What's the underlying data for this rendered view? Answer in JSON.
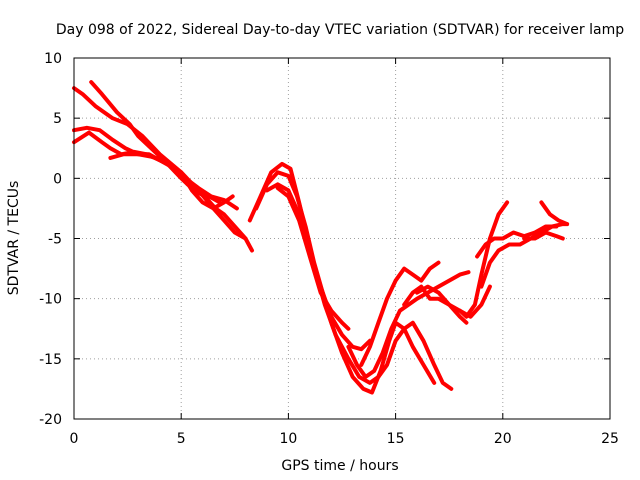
{
  "chart_data": {
    "type": "line",
    "title": "Day 098 of 2022, Sidereal Day-to-day VTEC variation (SDTVAR) for receiver lamp",
    "xlabel": "GPS time / hours",
    "ylabel": "SDTVAR / TECUs",
    "xlim": [
      0,
      25
    ],
    "ylim": [
      -20,
      10
    ],
    "xticks": [
      0,
      5,
      10,
      15,
      20,
      25
    ],
    "yticks": [
      -20,
      -15,
      -10,
      -5,
      0,
      5,
      10
    ],
    "xtick_labels": [
      "0",
      "5",
      "10",
      "15",
      "20",
      "25"
    ],
    "ytick_labels": [
      "-20",
      "-15",
      "-10",
      "-5",
      "0",
      "5",
      "10"
    ],
    "grid": true,
    "color": "#ff0000",
    "series": [
      {
        "name": "s1",
        "x": [
          0.0,
          0.4,
          1.0,
          1.8,
          2.5,
          3.2,
          4.0,
          5.0,
          5.8,
          6.5,
          7.0,
          7.5,
          8.0,
          8.3
        ],
        "y": [
          7.5,
          7.0,
          6.0,
          5.0,
          4.5,
          3.5,
          2.0,
          0.5,
          -1.0,
          -2.5,
          -3.5,
          -4.5,
          -5.0,
          -6.0
        ]
      },
      {
        "name": "s2",
        "x": [
          0.8,
          1.3,
          2.0,
          2.6,
          3.0,
          3.6,
          4.2,
          5.0,
          5.6,
          6.1,
          6.6,
          7.0,
          7.5,
          8.0
        ],
        "y": [
          8.0,
          7.0,
          5.5,
          4.5,
          3.5,
          2.5,
          1.5,
          0.0,
          -1.0,
          -1.5,
          -2.5,
          -3.0,
          -4.0,
          -5.0
        ]
      },
      {
        "name": "s3",
        "x": [
          0.0,
          0.6,
          1.2,
          1.8,
          2.4,
          3.0,
          3.6,
          4.2,
          4.8,
          5.3,
          5.8,
          6.3,
          6.8
        ],
        "y": [
          4.0,
          4.2,
          4.0,
          3.2,
          2.5,
          2.0,
          1.8,
          1.5,
          0.5,
          -0.5,
          -1.2,
          -1.5,
          -2.0
        ]
      },
      {
        "name": "s4",
        "x": [
          0.0,
          0.7,
          1.3,
          1.7,
          2.2,
          2.8,
          3.4,
          4.0,
          4.6,
          5.2,
          5.8,
          6.4,
          7.0,
          7.6
        ],
        "y": [
          3.0,
          3.8,
          3.0,
          2.5,
          2.0,
          2.2,
          2.0,
          1.5,
          1.0,
          0.0,
          -0.8,
          -1.5,
          -1.8,
          -2.5
        ]
      },
      {
        "name": "s5",
        "x": [
          1.7,
          2.3,
          2.9,
          3.5,
          4.0,
          4.5,
          5.0,
          5.5,
          6.0,
          6.5,
          7.0,
          7.4
        ],
        "y": [
          1.7,
          2.0,
          2.0,
          2.0,
          1.5,
          1.0,
          0.5,
          -1.0,
          -2.0,
          -2.5,
          -2.0,
          -1.5
        ]
      },
      {
        "name": "s6",
        "x": [
          8.2,
          8.7,
          9.2,
          9.7,
          10.1,
          10.5,
          10.9,
          11.3,
          11.7,
          12.2,
          12.8,
          13.3,
          13.8,
          14.2,
          14.6,
          15.0,
          15.4,
          15.8,
          16.3,
          16.8,
          17.2,
          17.6
        ],
        "y": [
          -3.5,
          -1.5,
          0.5,
          1.2,
          0.8,
          -2.0,
          -5.0,
          -8.0,
          -10.5,
          -13.0,
          -15.0,
          -16.5,
          -17.0,
          -16.5,
          -15.5,
          -13.5,
          -12.5,
          -12.0,
          -13.5,
          -15.5,
          -17.0,
          -17.5
        ]
      },
      {
        "name": "s7",
        "x": [
          8.5,
          9.0,
          9.5,
          10.0,
          10.4,
          10.8,
          11.2,
          11.6,
          12.0,
          12.5,
          13.0,
          13.5,
          13.9,
          14.3,
          14.7,
          15.0,
          15.4,
          15.8,
          16.3,
          16.8
        ],
        "y": [
          -2.5,
          -0.5,
          0.5,
          0.2,
          -1.5,
          -4.0,
          -7.0,
          -9.5,
          -12.0,
          -14.5,
          -16.5,
          -17.5,
          -17.8,
          -16.0,
          -13.5,
          -12.0,
          -12.5,
          -14.0,
          -15.5,
          -17.0
        ]
      },
      {
        "name": "s8",
        "x": [
          9.0,
          9.5,
          10.0,
          10.5,
          11.0,
          11.5,
          12.0,
          12.5,
          13.0,
          13.4,
          13.8
        ],
        "y": [
          -1.0,
          -0.5,
          -1.0,
          -3.0,
          -6.0,
          -9.0,
          -11.5,
          -13.0,
          -14.0,
          -14.2,
          -13.5
        ]
      },
      {
        "name": "s9",
        "x": [
          9.5,
          10.0,
          10.5,
          11.0,
          11.5,
          12.0,
          12.5,
          12.8
        ],
        "y": [
          -0.8,
          -1.5,
          -3.5,
          -6.5,
          -9.5,
          -11.0,
          -12.0,
          -12.5
        ]
      },
      {
        "name": "s10",
        "x": [
          12.8,
          13.2,
          13.6,
          14.0,
          14.4,
          14.8,
          15.2,
          15.6,
          16.0,
          16.5,
          17.0,
          17.5,
          18.0,
          18.4
        ],
        "y": [
          -14.0,
          -15.5,
          -16.5,
          -16.0,
          -14.5,
          -12.5,
          -11.0,
          -10.5,
          -10.0,
          -9.5,
          -9.0,
          -8.5,
          -8.0,
          -7.8
        ]
      },
      {
        "name": "s11",
        "x": [
          13.4,
          13.8,
          14.2,
          14.6,
          15.0,
          15.4,
          15.8,
          16.2,
          16.6,
          17.0
        ],
        "y": [
          -15.5,
          -14.0,
          -12.0,
          -10.0,
          -8.5,
          -7.5,
          -8.0,
          -8.5,
          -7.5,
          -7.0
        ]
      },
      {
        "name": "s12",
        "x": [
          15.4,
          15.8,
          16.2,
          16.6,
          17.0,
          17.5,
          18.0,
          18.5,
          19.0,
          19.4
        ],
        "y": [
          -10.5,
          -9.5,
          -9.0,
          -10.0,
          -10.0,
          -10.5,
          -11.0,
          -11.5,
          -10.5,
          -9.0
        ]
      },
      {
        "name": "s13",
        "x": [
          16.0,
          16.5,
          17.0,
          17.5,
          18.0,
          18.3
        ],
        "y": [
          -9.5,
          -9.0,
          -9.5,
          -10.5,
          -11.5,
          -12.0
        ]
      },
      {
        "name": "s14",
        "x": [
          18.0,
          18.3,
          18.7,
          19.0,
          19.4,
          19.8,
          20.2
        ],
        "y": [
          -11.0,
          -11.5,
          -10.5,
          -8.0,
          -5.0,
          -3.0,
          -2.0
        ]
      },
      {
        "name": "s15",
        "x": [
          19.0,
          19.4,
          19.8,
          20.3,
          20.8,
          21.3,
          21.8,
          22.3,
          22.8,
          23.0
        ],
        "y": [
          -9.0,
          -7.0,
          -6.0,
          -5.5,
          -5.5,
          -5.0,
          -4.5,
          -4.0,
          -3.8,
          -3.8
        ]
      },
      {
        "name": "s16",
        "x": [
          18.8,
          19.2,
          19.6,
          20.0,
          20.5,
          21.0,
          21.5,
          22.0,
          22.5
        ],
        "y": [
          -6.5,
          -5.5,
          -5.0,
          -5.0,
          -4.5,
          -4.8,
          -4.5,
          -4.0,
          -4.0
        ]
      },
      {
        "name": "s17",
        "x": [
          21.8,
          22.2,
          22.6,
          23.0
        ],
        "y": [
          -2.0,
          -3.0,
          -3.5,
          -3.8
        ]
      },
      {
        "name": "s18",
        "x": [
          21.0,
          21.5,
          22.0,
          22.5,
          22.8
        ],
        "y": [
          -5.0,
          -5.0,
          -4.5,
          -4.8,
          -5.0
        ]
      }
    ]
  }
}
